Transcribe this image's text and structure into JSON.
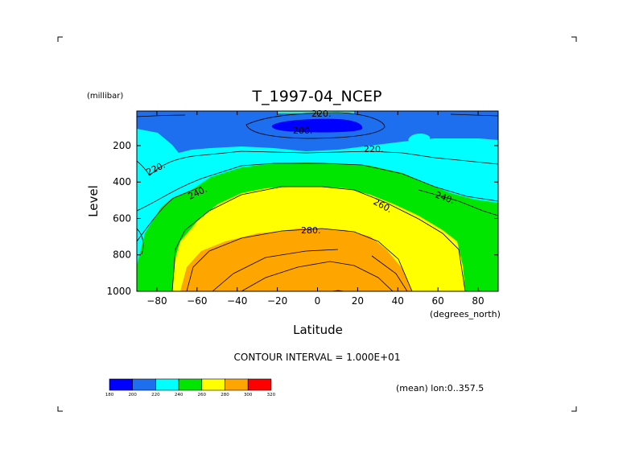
{
  "chart_data": {
    "type": "contour",
    "title": "T_1997-04_NCEP",
    "xlabel": "Latitude",
    "x_unit": "(degrees_north)",
    "ylabel": "Level",
    "y_unit": "(millibar)",
    "xlim": [
      -90,
      90
    ],
    "ylim": [
      1000,
      10
    ],
    "y_inverted": true,
    "x_ticks": [
      -80,
      -60,
      -40,
      -20,
      0,
      20,
      40,
      60,
      80
    ],
    "y_ticks": [
      200,
      400,
      600,
      800,
      1000
    ],
    "contour_interval_text": "CONTOUR INTERVAL = 1.000E+01",
    "averaging_text": "(mean) lon:0..357.5",
    "contour_labels": [
      {
        "text": "220.",
        "lat": -6,
        "level": 10
      },
      {
        "text": "200.",
        "lat": -8,
        "level": 85
      },
      {
        "text": "220.",
        "lat": 28,
        "level": 190
      },
      {
        "text": "220.",
        "lat": -80,
        "level": 300
      },
      {
        "text": "240.",
        "lat": -64,
        "level": 475
      },
      {
        "text": "240.",
        "lat": 70,
        "level": 480
      },
      {
        "text": "260.",
        "lat": 32,
        "level": 540
      },
      {
        "text": "280.",
        "lat": -3,
        "level": 700
      }
    ],
    "colorbar": {
      "colors": [
        "#0000ff",
        "#1e6ef0",
        "#00ffff",
        "#00e600",
        "#ffff00",
        "#ffa500",
        "#ff0000"
      ],
      "tick_labels": [
        "180",
        "200",
        "220",
        "240",
        "260",
        "280",
        "300",
        "320"
      ]
    },
    "fill_colors": {
      "blue": "#0000ff",
      "mid_blue": "#1e6ef0",
      "cyan": "#00ffff",
      "green": "#00e600",
      "yellow": "#ffff00",
      "orange": "#ffa500"
    }
  }
}
